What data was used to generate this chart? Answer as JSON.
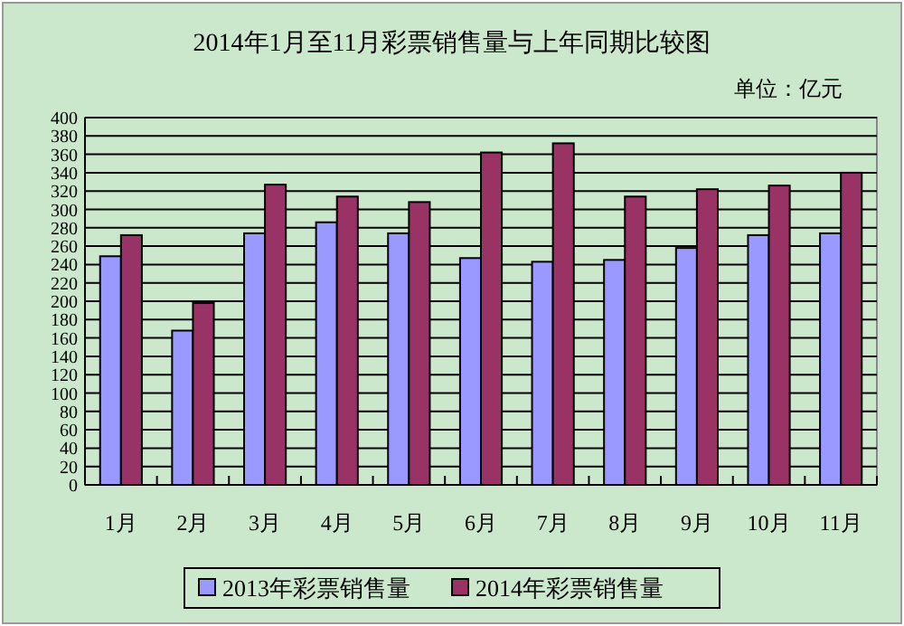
{
  "chart_data": {
    "type": "bar",
    "title": "2014年1月至11月彩票销售量与上年同期比较图",
    "annotations": [
      "单位：亿元"
    ],
    "categories": [
      "1月",
      "2月",
      "3月",
      "4月",
      "5月",
      "6月",
      "7月",
      "8月",
      "9月",
      "10月",
      "11月"
    ],
    "series": [
      {
        "name": "2013年彩票销售量",
        "color": "#9999ff",
        "values": [
          249,
          168,
          274,
          286,
          274,
          247,
          243,
          245,
          258,
          272,
          274
        ]
      },
      {
        "name": "2014年彩票销售量",
        "color": "#993366",
        "values": [
          272,
          198,
          327,
          314,
          308,
          362,
          372,
          314,
          322,
          326,
          340
        ]
      }
    ],
    "ylim": [
      0,
      400
    ],
    "yticks": [
      0,
      20,
      40,
      60,
      80,
      100,
      120,
      140,
      160,
      180,
      200,
      220,
      240,
      260,
      280,
      300,
      320,
      340,
      360,
      380,
      400
    ],
    "grid": "y",
    "legend": "bottom"
  }
}
